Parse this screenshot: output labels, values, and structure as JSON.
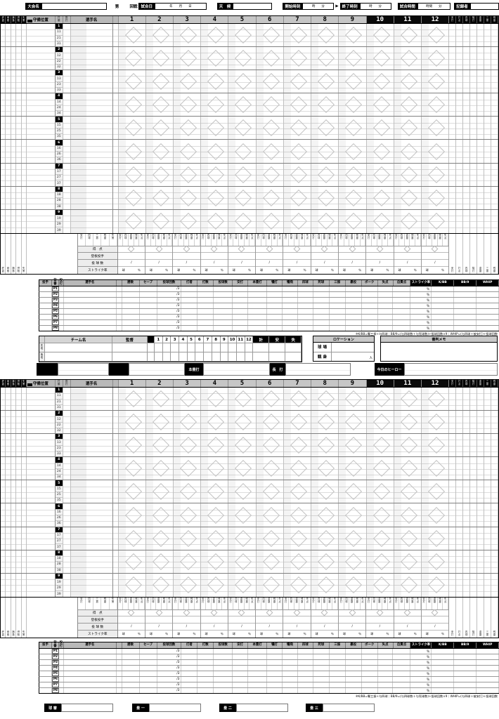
{
  "colors": {
    "accent_black": "#000000",
    "header_gray": "#c6c6c6",
    "panel_gray": "#b9b9b9"
  },
  "header_bar": {
    "tournament_label": "大会名",
    "round_prefix": "第",
    "round_suffix": "回戦",
    "date_label": "試合日",
    "date_units": "年　　月　　日",
    "weather_label": "天　候",
    "start_label": "開始時刻",
    "time_units": "時　　分",
    "arrow": "▶",
    "end_label": "終了時刻",
    "duration_label": "試合時間",
    "duration_units": "時間　　分",
    "recorder_label": "記録者"
  },
  "grid": {
    "position_header": "守備位置",
    "order_header": "打順",
    "hand_header": "投打",
    "player_header": "選手名",
    "innings": [
      "1",
      "2",
      "3",
      "4",
      "5",
      "6",
      "7",
      "8",
      "9",
      "10",
      "11",
      "12"
    ],
    "black_innings_from": 10,
    "slots": [
      "1",
      "2",
      "3",
      "4",
      "5",
      "6",
      "7",
      "8",
      "9"
    ],
    "sub_prefixes": [
      "1",
      "2",
      "3"
    ],
    "defense_stat_labels": [
      "許盗",
      "刺殺",
      "捕逸",
      "併殺",
      "失策"
    ],
    "batting_stat_labels": [
      "安打",
      "打点",
      "四球",
      "犠打",
      "盗塁",
      "三振",
      "残塁"
    ],
    "inning_sub_labels": [
      "安打",
      "四球",
      "盗塁",
      "残塁",
      "失点"
    ],
    "footer_left_cols": [
      "安打",
      "四球",
      "三振",
      "残塁",
      "失策"
    ],
    "footer_rows": [
      "得　点",
      "登板投手",
      "投 球 数",
      "ストライク率"
    ],
    "slash": "/",
    "pitch_unit": "球",
    "percent": "％"
  },
  "pitcher_table": {
    "first_header": "投手",
    "sub_headers": [
      "背番",
      "投打"
    ],
    "player_header": "選手名",
    "headers": [
      "勝敗",
      "セーブ",
      "投球回数",
      "打者",
      "打数",
      "投球数",
      "安打",
      "本塁打",
      "犠打",
      "犠飛",
      "四球",
      "死球",
      "三振",
      "暴投",
      "ボーク",
      "失点",
      "自責点",
      "ストライク率",
      "K/BB",
      "BB/9",
      "WHIP"
    ],
    "black_from": 17,
    "rows": [
      "P1",
      "P2",
      "P3",
      "P4",
      "P5",
      "P6",
      "P7",
      "P8"
    ],
    "ip_cell": "/3",
    "pct_cell": "％",
    "note": "※K/BB=奪三振÷与四球｜BB/9=(与四球数＋与死球数)÷投球回数×9｜WHIP=(与四球＋被安打)÷投球回数"
  },
  "summary": {
    "team_label": "チーム名",
    "manager_label": "監督",
    "side_labels": [
      "先攻",
      "後攻"
    ],
    "innings": [
      "1",
      "2",
      "3",
      "4",
      "5",
      "6",
      "7",
      "8",
      "9",
      "10",
      "11",
      "12"
    ],
    "total_labels": [
      "計",
      "安",
      "失"
    ],
    "location_title": "ロケーション",
    "stadium_label": "球 場",
    "crowd_label": "観 衆",
    "crowd_unit": "人",
    "memo_title": "審判メモ",
    "homerun_label": "本塁打",
    "long_hit_label": "長　打",
    "hero_label": "今日のヒーロー"
  },
  "umpires": {
    "labels": [
      "球 審",
      "塁 一",
      "塁 二",
      "塁 三"
    ]
  }
}
